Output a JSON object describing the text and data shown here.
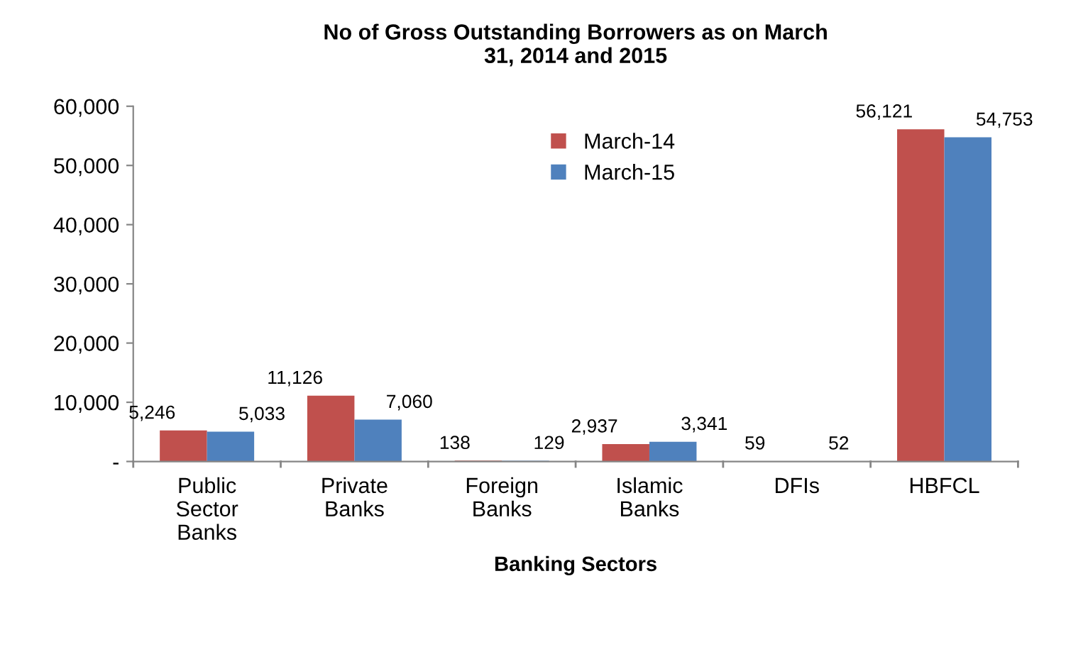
{
  "chart_data": {
    "type": "bar",
    "title": "No of Gross Outstanding Borrowers as on March\n31, 2014 and 2015",
    "xlabel": "Banking Sectors",
    "categories": [
      "Public\nSector\nBanks",
      "Private\nBanks",
      "Foreign\nBanks",
      "Islamic\nBanks",
      "DFIs",
      "HBFCL"
    ],
    "series": [
      {
        "name": "March-14",
        "color": "#c0504d",
        "values": [
          5246,
          11126,
          138,
          2937,
          59,
          56121
        ],
        "value_labels": [
          "5,246",
          "11,126",
          "138",
          "2,937",
          "59",
          "56,121"
        ]
      },
      {
        "name": "March-15",
        "color": "#4f81bd",
        "values": [
          5033,
          7060,
          129,
          3341,
          52,
          54753
        ],
        "value_labels": [
          "5,033",
          "7,060",
          "129",
          "3,341",
          "52",
          "54,753"
        ]
      }
    ],
    "ylim": [
      0,
      60000
    ],
    "yticks": [
      {
        "value": 0,
        "label": "-"
      },
      {
        "value": 10000,
        "label": "10,000"
      },
      {
        "value": 20000,
        "label": "20,000"
      },
      {
        "value": 30000,
        "label": "30,000"
      },
      {
        "value": 40000,
        "label": "40,000"
      },
      {
        "value": 50000,
        "label": "50,000"
      },
      {
        "value": 60000,
        "label": "60,000"
      }
    ],
    "grid": false,
    "legend": "top center"
  }
}
